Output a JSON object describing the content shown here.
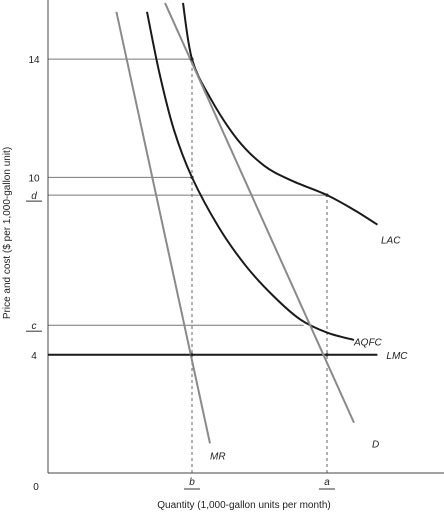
{
  "chart_data": {
    "type": "line",
    "xlabel": "Quantity (1,000-gallon units per month)",
    "ylabel": "Price and cost ($ per 1,000-gallon unit)",
    "xlim": [
      0,
      22
    ],
    "ylim": [
      0,
      16
    ],
    "y_ticks": [
      {
        "label": "14",
        "value": 14,
        "italic": false,
        "underline": false
      },
      {
        "label": "10",
        "value": 10,
        "italic": false,
        "underline": false
      },
      {
        "label": "d",
        "value": 9.4,
        "italic": true,
        "underline": true
      },
      {
        "label": "c",
        "value": 5.0,
        "italic": true,
        "underline": true
      },
      {
        "label": "4",
        "value": 4,
        "italic": false,
        "underline": false
      }
    ],
    "x_ticks": [
      {
        "label": "b",
        "value": 8.0,
        "italic": true,
        "underline": true
      },
      {
        "label": "a",
        "value": 15.5,
        "italic": true,
        "underline": true
      }
    ],
    "origin_label": "0",
    "guides": [
      {
        "kind": "h",
        "y": 14,
        "x0": 0,
        "x1": 8.0,
        "style": "solid"
      },
      {
        "kind": "h",
        "y": 10,
        "x0": 0,
        "x1": 8.0,
        "style": "solid"
      },
      {
        "kind": "h",
        "y": 9.4,
        "x0": 0,
        "x1": 15.5,
        "style": "solid"
      },
      {
        "kind": "h",
        "y": 5.0,
        "x0": 0,
        "x1": 14.2,
        "style": "solid"
      },
      {
        "kind": "v",
        "x": 8.0,
        "y0": 0,
        "y1": 14,
        "style": "dashed"
      },
      {
        "kind": "v",
        "x": 15.5,
        "y0": 0,
        "y1": 9.4,
        "style": "dashed"
      }
    ],
    "series": [
      {
        "name": "LAC",
        "color": "#1a1a1a",
        "width": 2,
        "label_at": [
          18.5,
          7.9
        ],
        "points": [
          [
            7.5,
            15.9
          ],
          [
            8.0,
            14.0
          ],
          [
            9.0,
            12.7
          ],
          [
            10.5,
            11.3
          ],
          [
            12.0,
            10.4
          ],
          [
            13.5,
            9.9
          ],
          [
            15.5,
            9.4
          ],
          [
            17.0,
            8.9
          ],
          [
            18.3,
            8.4
          ]
        ]
      },
      {
        "name": "AQFC",
        "color": "#1a1a1a",
        "width": 2,
        "label_at": [
          17.0,
          4.45
        ],
        "points": [
          [
            5.5,
            15.6
          ],
          [
            6.2,
            13.5
          ],
          [
            7.0,
            11.6
          ],
          [
            8.0,
            10.0
          ],
          [
            9.5,
            8.3
          ],
          [
            11.0,
            7.0
          ],
          [
            12.5,
            6.0
          ],
          [
            14.0,
            5.2
          ],
          [
            15.5,
            4.75
          ],
          [
            17.0,
            4.5
          ]
        ]
      },
      {
        "name": "LMC",
        "color": "#1a1a1a",
        "width": 2,
        "label_at": [
          18.8,
          4.0
        ],
        "points": [
          [
            0,
            4
          ],
          [
            18.3,
            4
          ]
        ]
      },
      {
        "name": "D",
        "color": "#8a8a8a",
        "width": 2,
        "label_at": [
          18.0,
          1.0
        ],
        "points": [
          [
            6.5,
            15.9
          ],
          [
            17.0,
            1.7
          ]
        ]
      },
      {
        "name": "MR",
        "color": "#8a8a8a",
        "width": 2,
        "label_at": [
          9.0,
          0.6
        ],
        "points": [
          [
            3.8,
            15.6
          ],
          [
            9.0,
            1.0
          ]
        ]
      }
    ],
    "points": [
      [
        8.0,
        14.0
      ],
      [
        8.0,
        10.0
      ],
      [
        15.5,
        9.4
      ],
      [
        8.0,
        4.0
      ],
      [
        15.5,
        4.0
      ]
    ]
  }
}
